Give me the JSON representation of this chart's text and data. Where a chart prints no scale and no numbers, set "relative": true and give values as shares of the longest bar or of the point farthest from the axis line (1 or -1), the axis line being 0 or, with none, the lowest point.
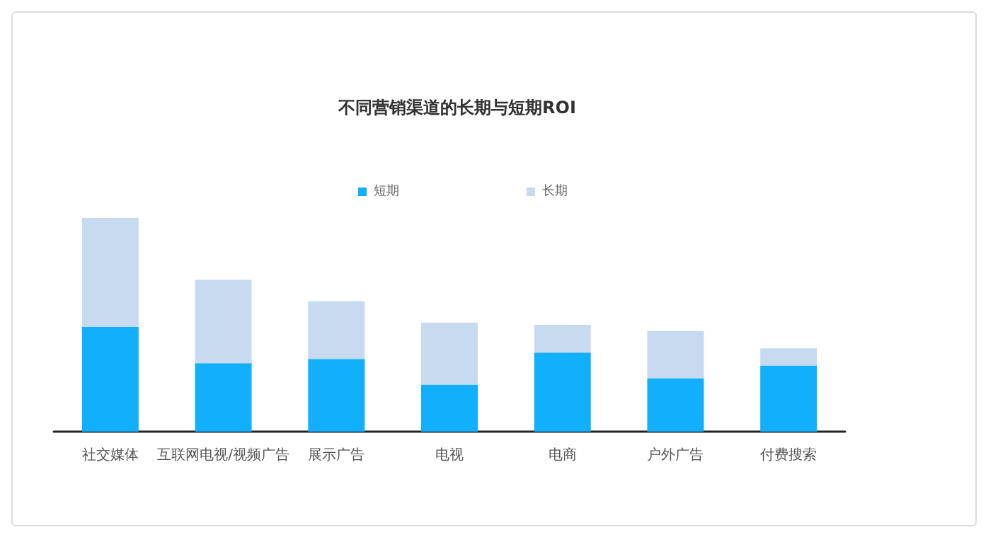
{
  "chart_data": {
    "type": "bar",
    "title": "不同营销渠道的长期与短期ROI",
    "categories": [
      "社交媒体",
      "互联网电视/视频广告",
      "展示广告",
      "电视",
      "电商",
      "户外广告",
      "付费搜索"
    ],
    "series": [
      {
        "name": "短期",
        "color": "#12affc",
        "values": [
          0.49,
          0.32,
          0.34,
          0.22,
          0.37,
          0.25,
          0.31
        ]
      },
      {
        "name": "长期",
        "color": "#c8daf0",
        "values": [
          0.51,
          0.39,
          0.27,
          0.29,
          0.13,
          0.22,
          0.08
        ]
      }
    ],
    "stacked": true,
    "relative": true,
    "legend": "top"
  }
}
